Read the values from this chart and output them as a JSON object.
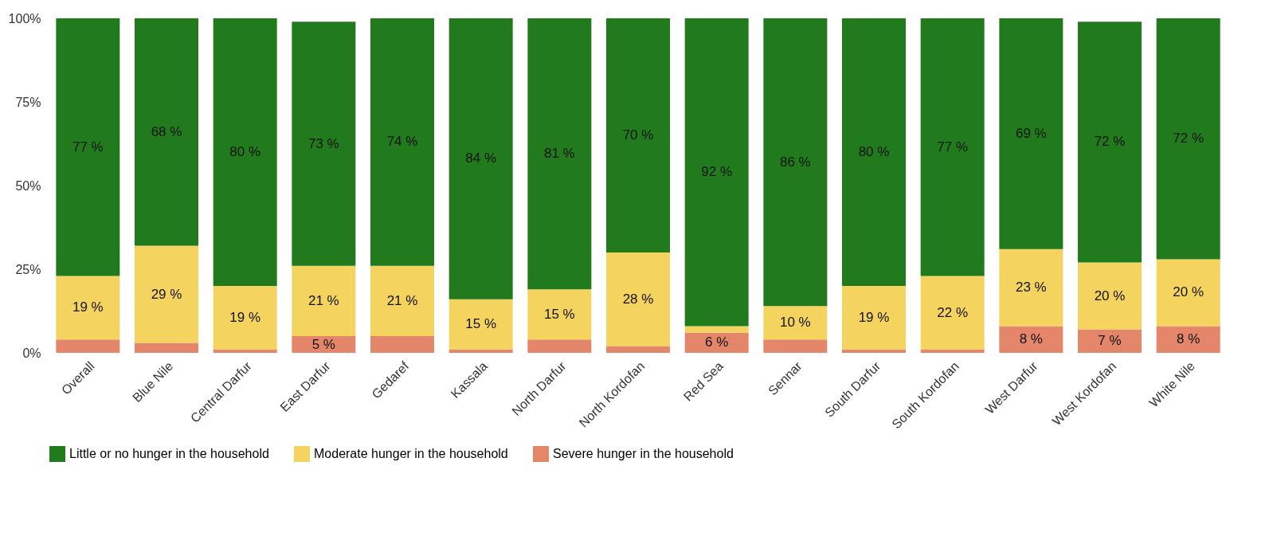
{
  "chart_data": {
    "type": "bar",
    "stacked": true,
    "legend": "bottom",
    "grid": false,
    "categories": [
      "Overall",
      "Blue Nile",
      "Central Darfur",
      "East Darfur",
      "Gedaref",
      "Kassala",
      "North Darfur",
      "North Kordofan",
      "Red Sea",
      "Sennar",
      "South Darfur",
      "South Kordofan",
      "West Darfur",
      "West Kordofan",
      "White Nile"
    ],
    "ylim": [
      0,
      100
    ],
    "yticks": [
      {
        "value": 0,
        "label": "0%"
      },
      {
        "value": 25,
        "label": "25%"
      },
      {
        "value": 50,
        "label": "50%"
      },
      {
        "value": 75,
        "label": "75%"
      },
      {
        "value": 100,
        "label": "100%"
      }
    ],
    "series": [
      {
        "name": "Severe hunger in the household",
        "color": "#e4866a",
        "values": [
          4,
          3,
          1,
          5,
          5,
          1,
          4,
          2,
          6,
          4,
          1,
          1,
          8,
          7,
          8
        ],
        "value_labels": [
          null,
          null,
          null,
          "5 %",
          null,
          null,
          null,
          null,
          "6 %",
          null,
          null,
          null,
          "8 %",
          "7 %",
          "8 %"
        ]
      },
      {
        "name": "Moderate hunger in the household",
        "color": "#f4d35e",
        "values": [
          19,
          29,
          19,
          21,
          21,
          15,
          15,
          28,
          2,
          10,
          19,
          22,
          23,
          20,
          20
        ],
        "value_labels": [
          "19 %",
          "29 %",
          "19 %",
          "21 %",
          "21 %",
          "15 %",
          "15 %",
          "28 %",
          null,
          "10 %",
          "19 %",
          "22 %",
          "23 %",
          "20 %",
          "20 %"
        ]
      },
      {
        "name": "Little or no hunger in the household",
        "color": "#217b1c",
        "values": [
          77,
          68,
          80,
          73,
          74,
          84,
          81,
          70,
          92,
          86,
          80,
          77,
          69,
          72,
          72
        ],
        "value_labels": [
          "77 %",
          "68 %",
          "80 %",
          "73 %",
          "74 %",
          "84 %",
          "81 %",
          "70 %",
          "92 %",
          "86 %",
          "80 %",
          "77 %",
          "69 %",
          "72 %",
          "72 %"
        ]
      }
    ]
  }
}
